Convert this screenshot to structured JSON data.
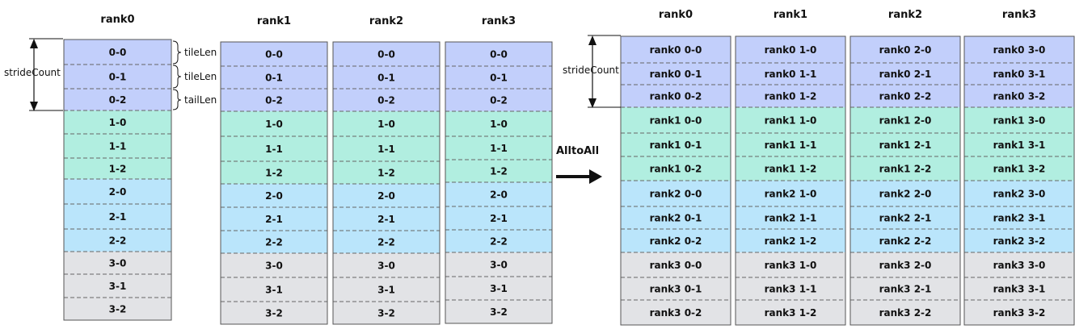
{
  "colors": {
    "block_0": "#c2cffb",
    "block_1": "#b1eee0",
    "block_2": "#bae5fb",
    "block_3": "#e2e3e6",
    "cell_border": "#555555",
    "divider": "#666666"
  },
  "annotations": {
    "stride_count": "strideCount",
    "tile_len": "tileLen",
    "tail_len": "tailLen",
    "operation": "AlltoAll"
  },
  "before": {
    "columns": [
      {
        "header": "rank0",
        "cells": [
          "0-0",
          "0-1",
          "0-2",
          "1-0",
          "1-1",
          "1-2",
          "2-0",
          "2-1",
          "2-2",
          "3-0",
          "3-1",
          "3-2"
        ]
      },
      {
        "header": "rank1",
        "cells": [
          "0-0",
          "0-1",
          "0-2",
          "1-0",
          "1-1",
          "1-2",
          "2-0",
          "2-1",
          "2-2",
          "3-0",
          "3-1",
          "3-2"
        ]
      },
      {
        "header": "rank2",
        "cells": [
          "0-0",
          "0-1",
          "0-2",
          "1-0",
          "1-1",
          "1-2",
          "2-0",
          "2-1",
          "2-2",
          "3-0",
          "3-1",
          "3-2"
        ]
      },
      {
        "header": "rank3",
        "cells": [
          "0-0",
          "0-1",
          "0-2",
          "1-0",
          "1-1",
          "1-2",
          "2-0",
          "2-1",
          "2-2",
          "3-0",
          "3-1",
          "3-2"
        ]
      }
    ]
  },
  "after": {
    "columns": [
      {
        "header": "rank0",
        "cells": [
          "rank0 0-0",
          "rank0 0-1",
          "rank0 0-2",
          "rank1 0-0",
          "rank1 0-1",
          "rank1 0-2",
          "rank2 0-0",
          "rank2 0-1",
          "rank2 0-2",
          "rank3 0-0",
          "rank3 0-1",
          "rank3 0-2"
        ]
      },
      {
        "header": "rank1",
        "cells": [
          "rank0 1-0",
          "rank0 1-1",
          "rank0 1-2",
          "rank1 1-0",
          "rank1 1-1",
          "rank1 1-2",
          "rank2 1-0",
          "rank2 1-1",
          "rank2 1-2",
          "rank3 1-0",
          "rank3 1-1",
          "rank3 1-2"
        ]
      },
      {
        "header": "rank2",
        "cells": [
          "rank0 2-0",
          "rank0 2-1",
          "rank0 2-2",
          "rank1 2-0",
          "rank1 2-1",
          "rank1 2-2",
          "rank2 2-0",
          "rank2 2-1",
          "rank2 2-2",
          "rank3 2-0",
          "rank3 2-1",
          "rank3 2-2"
        ]
      },
      {
        "header": "rank3",
        "cells": [
          "rank0 3-0",
          "rank0 3-1",
          "rank0 3-2",
          "rank1 3-0",
          "rank1 3-1",
          "rank1 3-2",
          "rank2 3-0",
          "rank2 3-1",
          "rank2 3-2",
          "rank3 3-0",
          "rank3 3-1",
          "rank3 3-2"
        ]
      }
    ]
  }
}
